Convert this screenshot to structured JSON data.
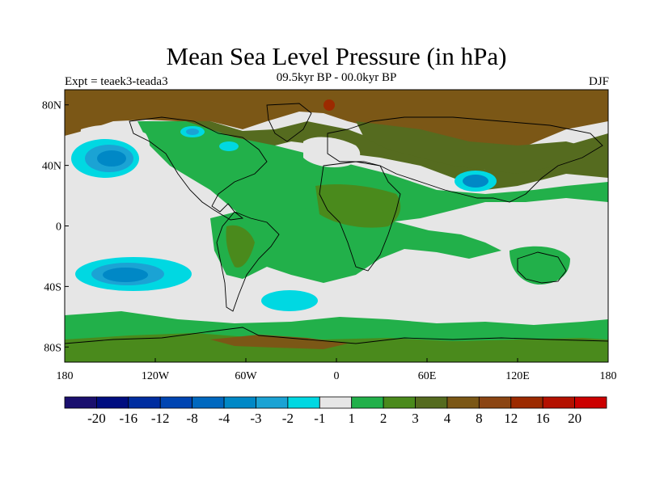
{
  "title": "Mean Sea Level Pressure (in hPa)",
  "experiment": "Expt = teaek3-teada3",
  "subtitle": "09.5kyr BP - 00.0kyr BP",
  "season": "DJF",
  "map": {
    "projection": "equirectangular",
    "lon_range": [
      -180,
      180
    ],
    "lat_range": [
      -90,
      90
    ],
    "lat_ticks": [
      "80N",
      "40N",
      "0",
      "40S",
      "80S"
    ],
    "lon_ticks": [
      "180",
      "120W",
      "60W",
      "0",
      "60E",
      "120E",
      "180"
    ],
    "background_color": "#e6e6e6",
    "coastline_color": "#000000"
  },
  "colorbar": {
    "colors": [
      "#1a0f6e",
      "#000d80",
      "#002da0",
      "#0045b2",
      "#0068bf",
      "#0088c6",
      "#1ba3d4",
      "#00d8e2",
      "#e6e6e6",
      "#22b04a",
      "#4a8a1c",
      "#556b1f",
      "#7b5716",
      "#8b4513",
      "#9c2a00",
      "#b41100",
      "#cc0000"
    ],
    "labels": [
      "-20",
      "-16",
      "-12",
      "-8",
      "-4",
      "-3",
      "-2",
      "-1",
      "1",
      "2",
      "3",
      "4",
      "8",
      "12",
      "16",
      "20"
    ]
  },
  "colors": {
    "light_gray": "#e6e6e6",
    "green": "#22b04a",
    "dark_green": "#4a8a1c",
    "olive": "#556b1f",
    "brown": "#7b5716",
    "cyan": "#00d8e2",
    "light_blue": "#1ba3d4",
    "mid_blue": "#0088c6",
    "red_brown": "#9c2a00"
  }
}
